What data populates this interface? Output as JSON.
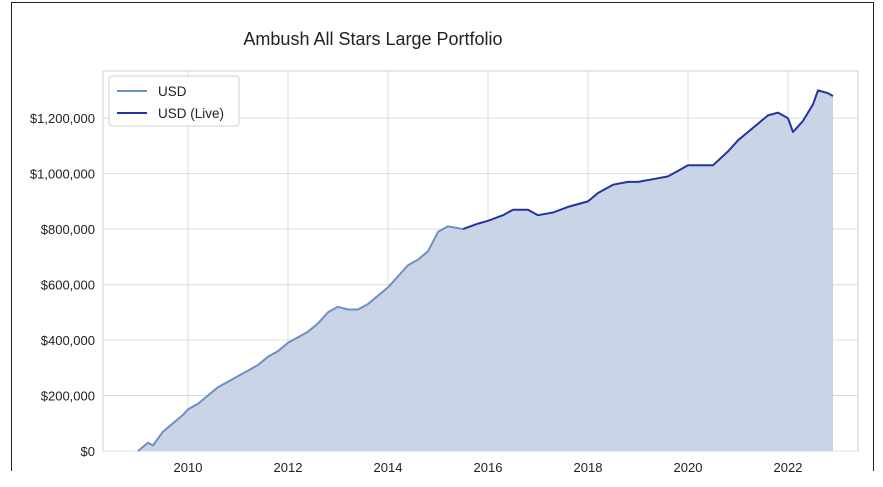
{
  "chart_data": {
    "type": "area",
    "title": "Ambush All Stars Large Portfolio",
    "xlabel": "",
    "ylabel": "",
    "xlim": [
      2008.3,
      2023.4
    ],
    "ylim": [
      0,
      1370000
    ],
    "grid": true,
    "legend_position": "top-left",
    "x_ticks": [
      "2010",
      "2012",
      "2014",
      "2016",
      "2018",
      "2020",
      "2022"
    ],
    "y_ticks": [
      "$0",
      "$200,000",
      "$400,000",
      "$600,000",
      "$800,000",
      "$1,000,000",
      "$1,200,000"
    ],
    "colors": {
      "usd": "#6d8fc4",
      "live": "#25339c",
      "fill": "#c9d5e7",
      "grid": "#dcdcdc"
    },
    "series": [
      {
        "name": "USD",
        "x": [
          2009.0,
          2009.2,
          2009.3,
          2009.5,
          2009.7,
          2009.9,
          2010.0,
          2010.2,
          2010.4,
          2010.6,
          2010.8,
          2011.0,
          2011.2,
          2011.4,
          2011.6,
          2011.8,
          2012.0,
          2012.2,
          2012.4,
          2012.6,
          2012.8,
          2013.0,
          2013.2,
          2013.4,
          2013.6,
          2013.8,
          2014.0,
          2014.2,
          2014.4,
          2014.6,
          2014.8,
          2015.0,
          2015.2,
          2015.5
        ],
        "values": [
          0,
          30000,
          20000,
          70000,
          100000,
          130000,
          150000,
          170000,
          200000,
          230000,
          250000,
          270000,
          290000,
          310000,
          340000,
          360000,
          390000,
          410000,
          430000,
          460000,
          500000,
          520000,
          510000,
          510000,
          530000,
          560000,
          590000,
          630000,
          670000,
          690000,
          720000,
          790000,
          810000,
          800000
        ]
      },
      {
        "name": "USD (Live)",
        "x": [
          2015.5,
          2015.8,
          2016.0,
          2016.3,
          2016.5,
          2016.8,
          2017.0,
          2017.3,
          2017.6,
          2018.0,
          2018.2,
          2018.5,
          2018.8,
          2019.0,
          2019.3,
          2019.6,
          2019.8,
          2020.0,
          2020.3,
          2020.5,
          2020.8,
          2021.0,
          2021.2,
          2021.4,
          2021.6,
          2021.8,
          2022.0,
          2022.1,
          2022.3,
          2022.5,
          2022.6,
          2022.8,
          2022.9
        ],
        "values": [
          800000,
          820000,
          830000,
          850000,
          870000,
          870000,
          850000,
          860000,
          880000,
          900000,
          930000,
          960000,
          970000,
          970000,
          980000,
          990000,
          1010000,
          1030000,
          1030000,
          1030000,
          1080000,
          1120000,
          1150000,
          1180000,
          1210000,
          1220000,
          1200000,
          1150000,
          1190000,
          1250000,
          1300000,
          1290000,
          1280000
        ]
      }
    ]
  }
}
